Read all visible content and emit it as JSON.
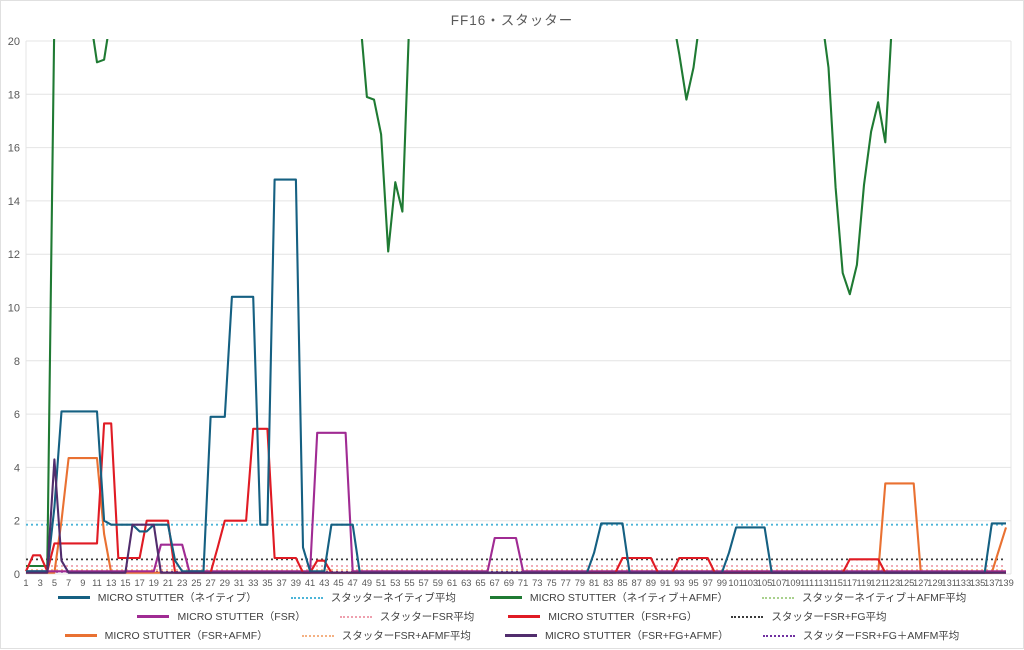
{
  "title": "FF16・スタッター",
  "colors": {
    "background": "#ffffff",
    "gridline": "#e4e4e4",
    "axis_text": "#595959",
    "legend_text": "#404040",
    "native": "#156082",
    "native_avg": "#4cb5d8",
    "native_afmf": "#1f7a33",
    "native_afmf_avg": "#a9d18e",
    "fsr": "#a02b93",
    "fsr_avg": "#eea0ae",
    "fsr_fg": "#e01b24",
    "fsr_fg_avg": "#3a3a3a",
    "fsr_afmf": "#e97132",
    "fsr_afmf_avg": "#f4b183",
    "fsr_fg_afmf": "#512d6d",
    "fsr_fg_afmf_avg": "#7030a0"
  },
  "chart_data": {
    "type": "line",
    "title": "FF16・スタッター",
    "xlabel": "",
    "ylabel": "",
    "ylim": [
      0,
      20
    ],
    "y_ticks": [
      0,
      2,
      4,
      6,
      8,
      10,
      12,
      14,
      16,
      18,
      20
    ],
    "x_ticks": [
      1,
      3,
      5,
      7,
      9,
      11,
      13,
      15,
      17,
      19,
      21,
      23,
      25,
      27,
      29,
      31,
      33,
      35,
      37,
      39,
      41,
      43,
      45,
      47,
      49,
      51,
      53,
      55,
      57,
      59,
      61,
      63,
      65,
      67,
      69,
      71,
      73,
      75,
      77,
      79,
      81,
      83,
      85,
      87,
      89,
      91,
      93,
      95,
      97,
      99,
      101,
      103,
      105,
      107,
      109,
      111,
      113,
      115,
      117,
      119,
      121,
      123,
      125,
      127,
      129,
      131,
      133,
      135,
      137,
      139
    ],
    "x_range": [
      1,
      139
    ],
    "grid": "horizontal",
    "legend_position": "bottom",
    "clip_note": "values of 21 represent segments clipped above the 20 axis maximum",
    "series": [
      {
        "key": "native_afmf",
        "name": "MICRO STUTTER（ネイティブ＋AFMF）",
        "color": "#1f7a33",
        "values_rle": [
          [
            4,
            0.3
          ],
          [
            6,
            21
          ],
          [
            1,
            19.2
          ],
          [
            1,
            19.3
          ],
          [
            36,
            21
          ],
          [
            1,
            17.9
          ],
          [
            1,
            17.8
          ],
          [
            1,
            16.5
          ],
          [
            1,
            12.1
          ],
          [
            1,
            14.7
          ],
          [
            1,
            13.6
          ],
          [
            38,
            21
          ],
          [
            1,
            19.5
          ],
          [
            1,
            17.8
          ],
          [
            1,
            19
          ],
          [
            18,
            21
          ],
          [
            1,
            19
          ],
          [
            1,
            14.5
          ],
          [
            1,
            11.3
          ],
          [
            1,
            10.5
          ],
          [
            1,
            11.6
          ],
          [
            1,
            14.6
          ],
          [
            1,
            16.6
          ],
          [
            1,
            17.7
          ],
          [
            1,
            16.2
          ],
          [
            17,
            21
          ]
        ]
      },
      {
        "key": "fsr_afmf",
        "name": "MICRO STUTTER（FSR+AFMF）",
        "color": "#e97132",
        "values_rle": [
          [
            5,
            0.05
          ],
          [
            1,
            2
          ],
          [
            5,
            4.35
          ],
          [
            1,
            1.5
          ],
          [
            109,
            0.05
          ],
          [
            5,
            3.4
          ],
          [
            11,
            0.05
          ],
          [
            1,
            0.9
          ],
          [
            1,
            1.75
          ]
        ]
      },
      {
        "key": "fsr",
        "name": "MICRO STUTTER（FSR）",
        "color": "#a02b93",
        "values_rle": [
          [
            19,
            0.1
          ],
          [
            4,
            1.1
          ],
          [
            18,
            0.1
          ],
          [
            5,
            5.3
          ],
          [
            20,
            0.1
          ],
          [
            4,
            1.35
          ],
          [
            69,
            0.1
          ]
        ]
      },
      {
        "key": "fsr_fg",
        "name": "MICRO STUTTER（FSR+FG）",
        "color": "#e01b24",
        "values_rle": [
          [
            1,
            0.1
          ],
          [
            2,
            0.7
          ],
          [
            1,
            0.1
          ],
          [
            7,
            1.15
          ],
          [
            2,
            5.65
          ],
          [
            4,
            0.6
          ],
          [
            4,
            2
          ],
          [
            6,
            0.05
          ],
          [
            1,
            1
          ],
          [
            4,
            2
          ],
          [
            3,
            5.45
          ],
          [
            4,
            0.6
          ],
          [
            2,
            0.05
          ],
          [
            2,
            0.5
          ],
          [
            41,
            0.05
          ],
          [
            5,
            0.6
          ],
          [
            3,
            0.05
          ],
          [
            5,
            0.6
          ],
          [
            19,
            0.05
          ],
          [
            5,
            0.55
          ],
          [
            18,
            0.05
          ]
        ]
      },
      {
        "key": "native",
        "name": "MICRO STUTTER（ネイティブ）",
        "color": "#156082",
        "values_rle": [
          [
            4,
            0.1
          ],
          [
            1,
            2.5
          ],
          [
            6,
            6.1
          ],
          [
            1,
            2
          ],
          [
            4,
            1.85
          ],
          [
            2,
            1.6
          ],
          [
            3,
            1.85
          ],
          [
            1,
            0.5
          ],
          [
            4,
            0.1
          ],
          [
            3,
            5.9
          ],
          [
            4,
            10.4
          ],
          [
            2,
            1.85
          ],
          [
            4,
            14.8
          ],
          [
            1,
            1
          ],
          [
            3,
            0.1
          ],
          [
            4,
            1.85
          ],
          [
            33,
            0.05
          ],
          [
            1,
            0.8
          ],
          [
            4,
            1.9
          ],
          [
            14,
            0.05
          ],
          [
            1,
            0.8
          ],
          [
            5,
            1.75
          ],
          [
            31,
            0.05
          ],
          [
            3,
            1.9
          ]
        ]
      },
      {
        "key": "fsr_fg_afmf",
        "name": "MICRO STUTTER（FSR+FG+AFMF）",
        "color": "#512d6d",
        "values_rle": [
          [
            4,
            0.05
          ],
          [
            1,
            4.3
          ],
          [
            1,
            0.5
          ],
          [
            9,
            0.05
          ],
          [
            4,
            1.85
          ],
          [
            120,
            0.05
          ]
        ]
      }
    ],
    "average_lines": [
      {
        "key": "native_avg",
        "name": "スタッターネイティブ平均",
        "color": "#4cb5d8",
        "value": 1.85
      },
      {
        "key": "native_afmf_avg",
        "name": "スタッターネイティブ＋AFMF平均",
        "color": "#a9d18e",
        "value": null,
        "visible": false,
        "note": "above axis max, not visible in plot"
      },
      {
        "key": "fsr_avg",
        "name": "スタッターFSR平均",
        "color": "#eea0ae",
        "value": 0.3
      },
      {
        "key": "fsr_fg_avg",
        "name": "スタッターFSR+FG平均",
        "color": "#3a3a3a",
        "value": 0.55
      },
      {
        "key": "fsr_afmf_avg",
        "name": "スタッターFSR+AFMF平均",
        "color": "#f4b183",
        "value": 0.15
      },
      {
        "key": "fsr_fg_afmf_avg",
        "name": "スタッターFSR+FG＋AMFM平均",
        "color": "#7030a0",
        "value": 0.08
      }
    ]
  },
  "legend": {
    "rows": [
      [
        {
          "label": "MICRO STUTTER（ネイティブ）",
          "color": "#156082",
          "style": "solid"
        },
        {
          "label": "スタッターネイティブ平均",
          "color": "#4cb5d8",
          "style": "dotted"
        },
        {
          "label": "MICRO STUTTER（ネイティブ＋AFMF）",
          "color": "#1f7a33",
          "style": "solid"
        },
        {
          "label": "スタッターネイティブ＋AFMF平均",
          "color": "#a9d18e",
          "style": "dotted"
        }
      ],
      [
        {
          "label": "MICRO STUTTER（FSR）",
          "color": "#a02b93",
          "style": "solid"
        },
        {
          "label": "スタッターFSR平均",
          "color": "#eea0ae",
          "style": "dotted"
        },
        {
          "label": "MICRO STUTTER（FSR+FG）",
          "color": "#e01b24",
          "style": "solid"
        },
        {
          "label": "スタッターFSR+FG平均",
          "color": "#3a3a3a",
          "style": "dotted"
        }
      ],
      [
        {
          "label": "MICRO STUTTER（FSR+AFMF）",
          "color": "#e97132",
          "style": "solid"
        },
        {
          "label": "スタッターFSR+AFMF平均",
          "color": "#f4b183",
          "style": "dotted"
        },
        {
          "label": "MICRO STUTTER（FSR+FG+AFMF）",
          "color": "#512d6d",
          "style": "solid"
        },
        {
          "label": "スタッターFSR+FG＋AMFM平均",
          "color": "#7030a0",
          "style": "dotted"
        }
      ]
    ]
  }
}
